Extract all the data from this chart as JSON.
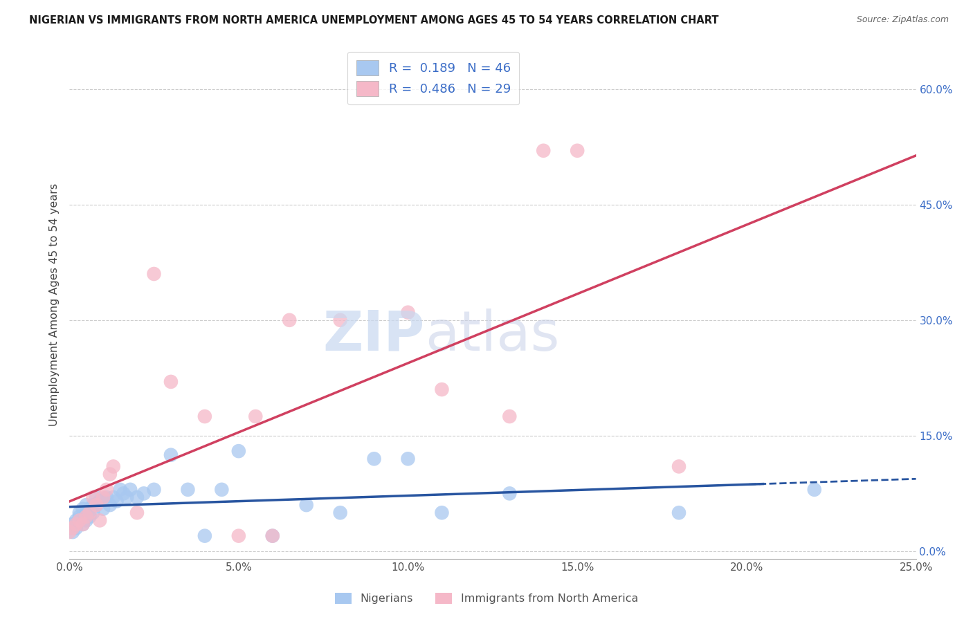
{
  "title": "NIGERIAN VS IMMIGRANTS FROM NORTH AMERICA UNEMPLOYMENT AMONG AGES 45 TO 54 YEARS CORRELATION CHART",
  "source": "Source: ZipAtlas.com",
  "ylabel": "Unemployment Among Ages 45 to 54 years",
  "xlim": [
    0.0,
    0.25
  ],
  "ylim": [
    -0.01,
    0.65
  ],
  "xticks": [
    0.0,
    0.05,
    0.1,
    0.15,
    0.2,
    0.25
  ],
  "yticks_right": [
    0.0,
    0.15,
    0.3,
    0.45,
    0.6
  ],
  "blue_color": "#A8C8F0",
  "pink_color": "#F5B8C8",
  "blue_line_color": "#2855A0",
  "pink_line_color": "#D04060",
  "blue_R": 0.189,
  "blue_N": 46,
  "pink_R": 0.486,
  "pink_N": 29,
  "watermark_zip": "ZIP",
  "watermark_atlas": "atlas",
  "legend_label_blue": "Nigerians",
  "legend_label_pink": "Immigrants from North America",
  "blue_scatter_x": [
    0.0,
    0.001,
    0.001,
    0.002,
    0.002,
    0.003,
    0.003,
    0.004,
    0.004,
    0.005,
    0.005,
    0.005,
    0.006,
    0.006,
    0.007,
    0.007,
    0.008,
    0.008,
    0.009,
    0.01,
    0.01,
    0.011,
    0.012,
    0.013,
    0.014,
    0.015,
    0.016,
    0.017,
    0.018,
    0.02,
    0.022,
    0.025,
    0.03,
    0.035,
    0.04,
    0.045,
    0.05,
    0.06,
    0.07,
    0.08,
    0.09,
    0.1,
    0.11,
    0.13,
    0.18,
    0.22
  ],
  "blue_scatter_y": [
    0.03,
    0.025,
    0.035,
    0.04,
    0.03,
    0.045,
    0.05,
    0.035,
    0.055,
    0.04,
    0.05,
    0.06,
    0.045,
    0.055,
    0.06,
    0.05,
    0.06,
    0.07,
    0.065,
    0.055,
    0.065,
    0.07,
    0.06,
    0.07,
    0.065,
    0.08,
    0.075,
    0.07,
    0.08,
    0.07,
    0.075,
    0.08,
    0.125,
    0.08,
    0.02,
    0.08,
    0.13,
    0.02,
    0.06,
    0.05,
    0.12,
    0.12,
    0.05,
    0.075,
    0.05,
    0.08
  ],
  "pink_scatter_x": [
    0.0,
    0.001,
    0.002,
    0.003,
    0.004,
    0.005,
    0.006,
    0.007,
    0.008,
    0.009,
    0.01,
    0.011,
    0.012,
    0.013,
    0.02,
    0.025,
    0.03,
    0.04,
    0.05,
    0.055,
    0.06,
    0.065,
    0.08,
    0.1,
    0.11,
    0.13,
    0.14,
    0.15,
    0.18
  ],
  "pink_scatter_y": [
    0.025,
    0.03,
    0.035,
    0.04,
    0.035,
    0.045,
    0.05,
    0.07,
    0.06,
    0.04,
    0.07,
    0.08,
    0.1,
    0.11,
    0.05,
    0.36,
    0.22,
    0.175,
    0.02,
    0.175,
    0.02,
    0.3,
    0.3,
    0.31,
    0.21,
    0.175,
    0.52,
    0.52,
    0.11
  ]
}
